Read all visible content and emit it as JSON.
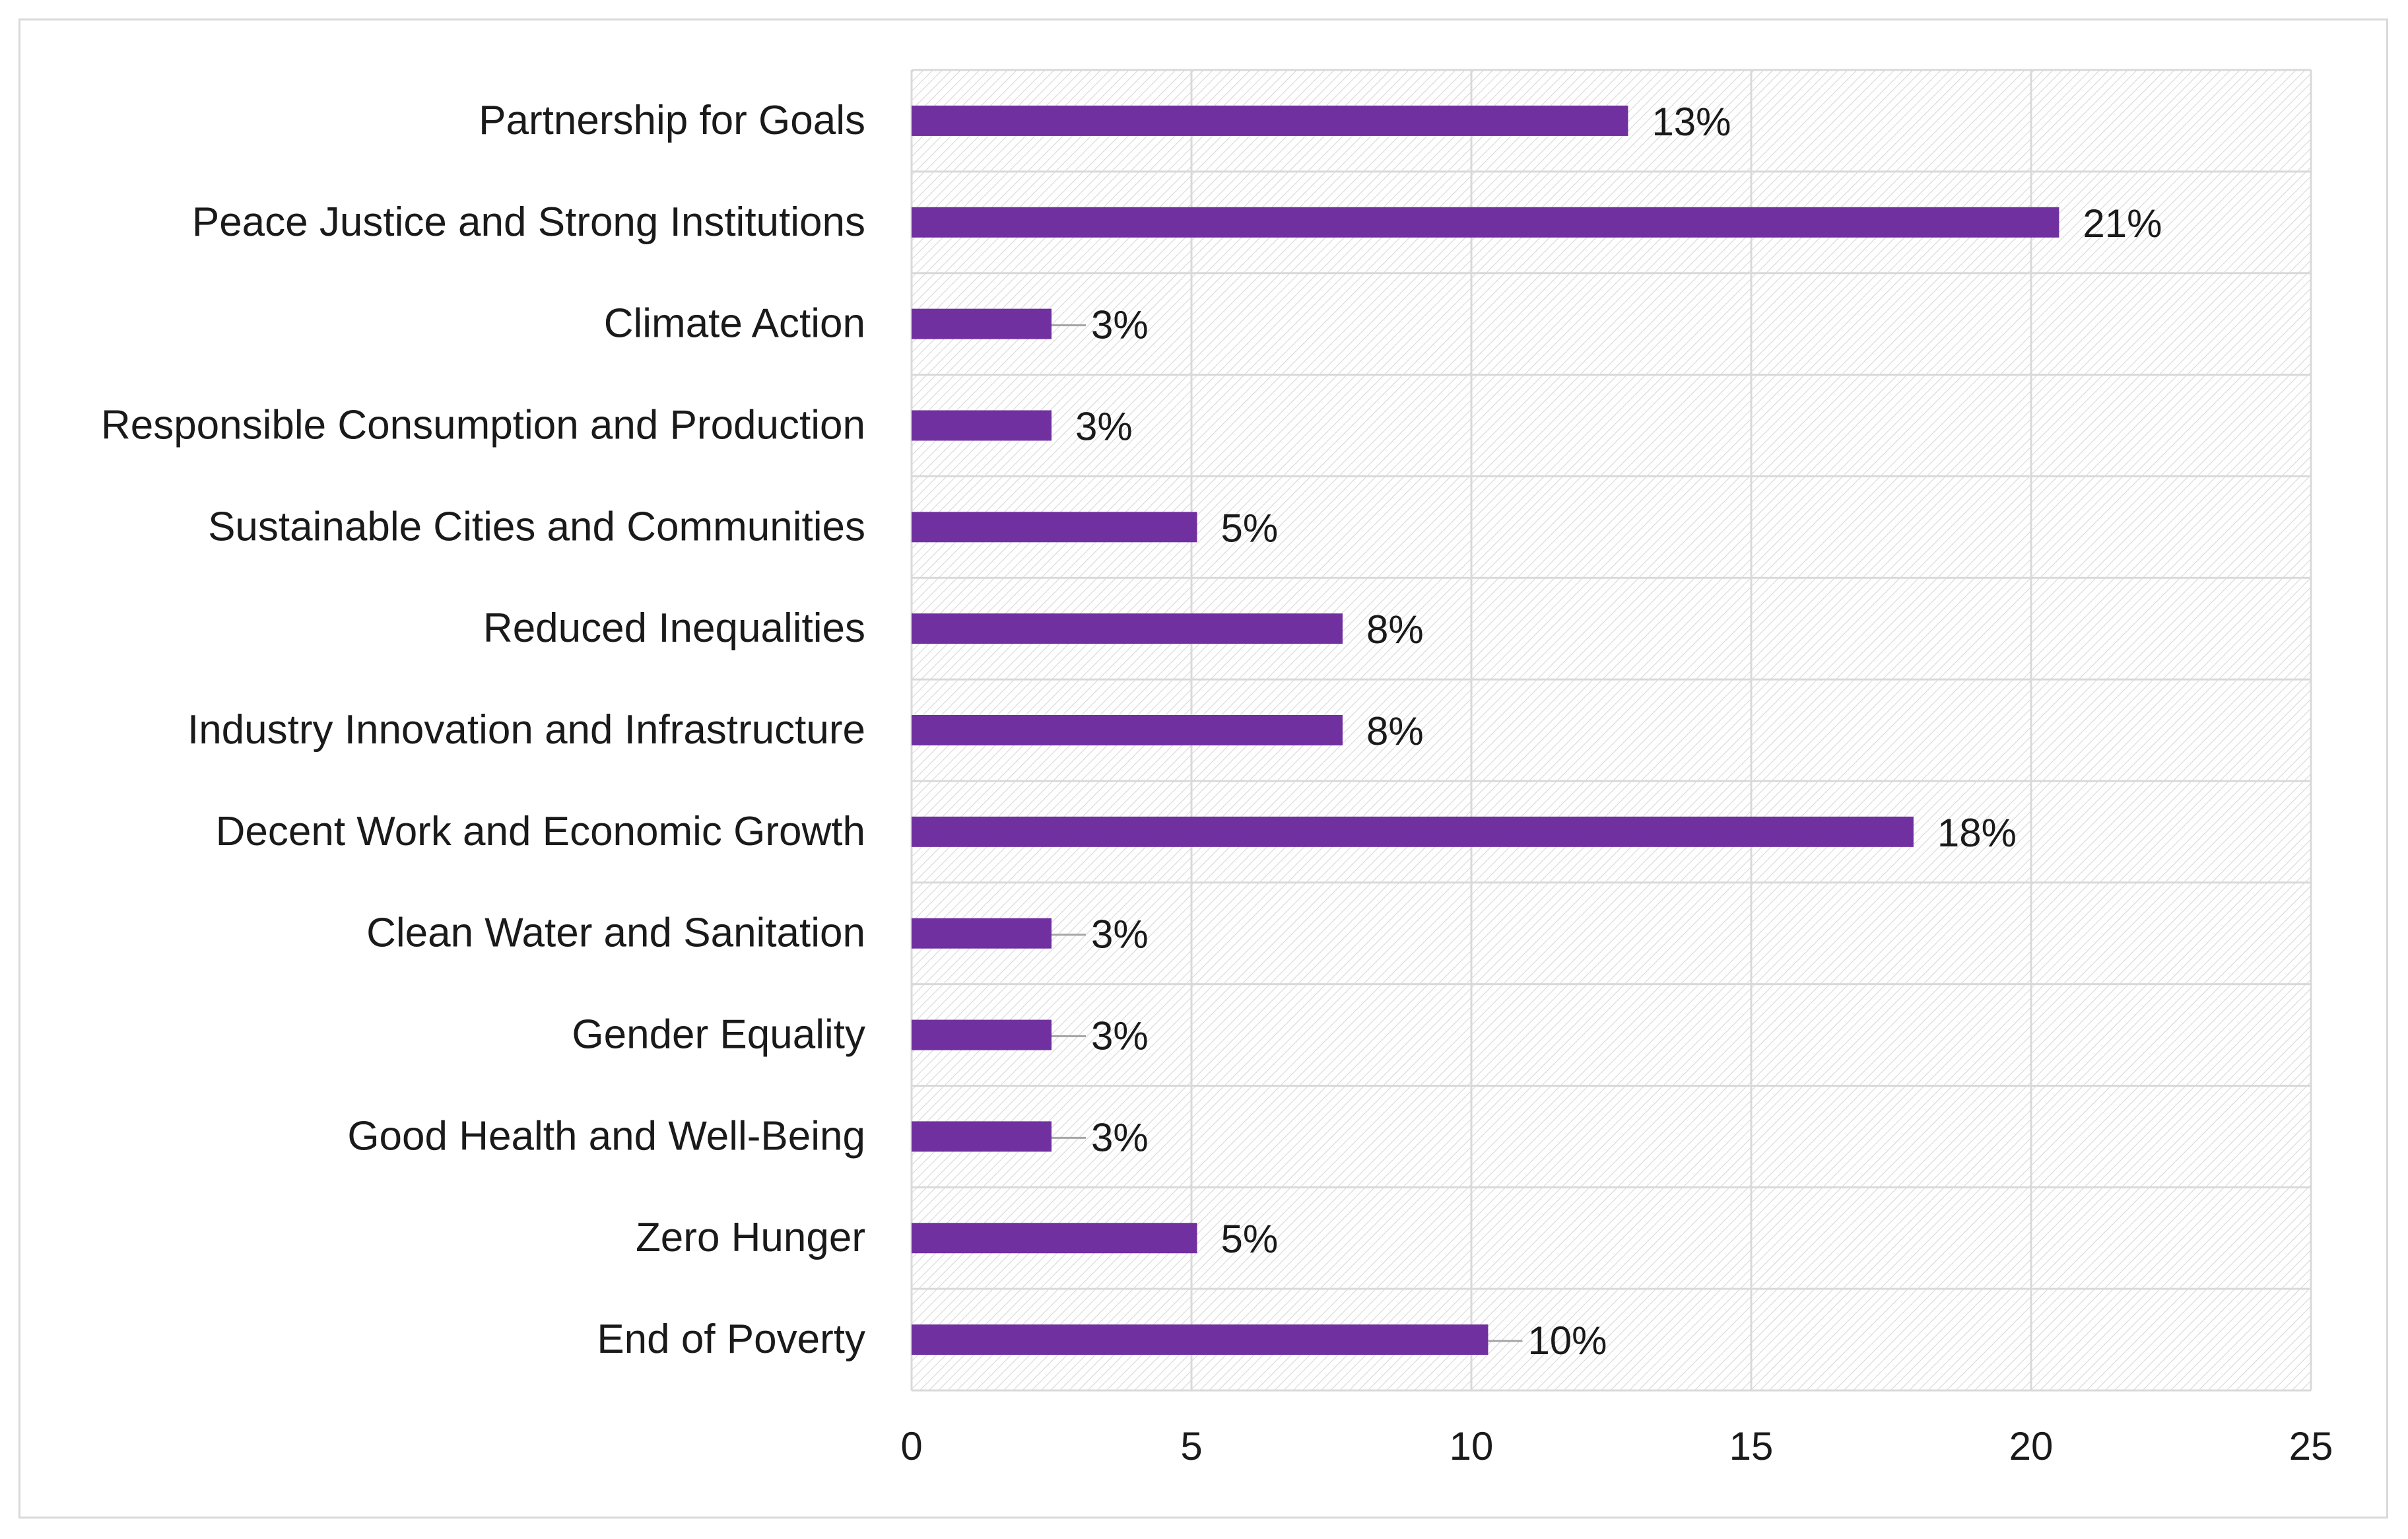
{
  "chart_data": {
    "type": "bar",
    "orientation": "horizontal",
    "title": "",
    "xlabel": "",
    "ylabel": "",
    "xlim": [
      0,
      25
    ],
    "xticks": [
      0,
      5,
      10,
      15,
      20,
      25
    ],
    "grid": true,
    "bar_color": "#7030a0",
    "categories": [
      "Partnership for Goals",
      "Peace Justice and Strong Institutions",
      "Climate Action",
      "Responsible Consumption and Production",
      "Sustainable Cities and Communities",
      "Reduced Inequalities",
      "Industry Innovation and Infrastructure",
      "Decent Work and Economic Growth",
      "Clean Water and Sanitation",
      "Gender Equality",
      "Good Health and Well-Being",
      "Zero Hunger",
      "End of Poverty"
    ],
    "values": [
      12.8,
      20.5,
      2.5,
      2.5,
      5.1,
      7.7,
      7.7,
      17.9,
      2.5,
      2.5,
      2.5,
      5.1,
      10.3
    ],
    "data_labels": [
      "13%",
      "21%",
      "3%",
      "3%",
      "5%",
      "8%",
      "8%",
      "18%",
      "3%",
      "3%",
      "3%",
      "5%",
      "10%"
    ],
    "leader_lines": [
      false,
      false,
      true,
      false,
      false,
      false,
      false,
      false,
      true,
      true,
      true,
      false,
      true
    ]
  }
}
